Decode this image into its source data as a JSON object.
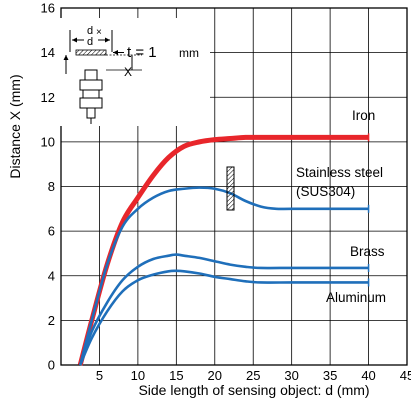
{
  "chart_data": {
    "type": "line",
    "xlabel": "Side length of sensing object: d (mm)",
    "ylabel": "Distance X (mm)",
    "xlim": [
      0,
      45
    ],
    "ylim": [
      0,
      16
    ],
    "x_ticks": [
      "5",
      "10",
      "15",
      "20",
      "25",
      "30",
      "35",
      "40",
      "45"
    ],
    "y_ticks": [
      "0",
      "2",
      "4",
      "6",
      "8",
      "10",
      "12",
      "14",
      "16"
    ],
    "grid": true,
    "inset": {
      "thickness_label": "t = 1",
      "thickness_unit": "mm",
      "d_label": "d",
      "x_label": "X"
    },
    "series": [
      {
        "name": "Iron",
        "color": "#e8262b",
        "points": [
          [
            2.5,
            0
          ],
          [
            4,
            2
          ],
          [
            6,
            4.5
          ],
          [
            8,
            6.4
          ],
          [
            10,
            7.5
          ],
          [
            12,
            8.5
          ],
          [
            14,
            9.3
          ],
          [
            16,
            9.8
          ],
          [
            18,
            10.0
          ],
          [
            20,
            10.1
          ],
          [
            22,
            10.15
          ],
          [
            24,
            10.2
          ],
          [
            26,
            10.2
          ],
          [
            30,
            10.2
          ],
          [
            35,
            10.2
          ],
          [
            40,
            10.2
          ]
        ]
      },
      {
        "name": "Stainless steel (SUS304)",
        "color": "#1f6fba",
        "points": [
          [
            2.5,
            0
          ],
          [
            4,
            2
          ],
          [
            6,
            4.5
          ],
          [
            8,
            6.2
          ],
          [
            10,
            7.0
          ],
          [
            12,
            7.5
          ],
          [
            14,
            7.8
          ],
          [
            16,
            7.9
          ],
          [
            18,
            7.95
          ],
          [
            20,
            7.9
          ],
          [
            22,
            7.7
          ],
          [
            24,
            7.35
          ],
          [
            26,
            7.1
          ],
          [
            28,
            7.0
          ],
          [
            30,
            7.0
          ],
          [
            35,
            7.0
          ],
          [
            40,
            7.0
          ]
        ]
      },
      {
        "name": "Brass",
        "color": "#1f6fba",
        "points": [
          [
            2.5,
            0
          ],
          [
            4,
            1.5
          ],
          [
            6,
            2.8
          ],
          [
            8,
            3.8
          ],
          [
            10,
            4.4
          ],
          [
            12,
            4.75
          ],
          [
            14,
            4.9
          ],
          [
            15,
            4.95
          ],
          [
            16,
            4.9
          ],
          [
            18,
            4.8
          ],
          [
            20,
            4.65
          ],
          [
            22,
            4.5
          ],
          [
            24,
            4.4
          ],
          [
            26,
            4.35
          ],
          [
            30,
            4.35
          ],
          [
            35,
            4.35
          ],
          [
            40,
            4.35
          ]
        ]
      },
      {
        "name": "Aluminum",
        "color": "#1f6fba",
        "points": [
          [
            2.5,
            0
          ],
          [
            4,
            1.2
          ],
          [
            6,
            2.4
          ],
          [
            8,
            3.3
          ],
          [
            10,
            3.8
          ],
          [
            12,
            4.05
          ],
          [
            14,
            4.2
          ],
          [
            15,
            4.22
          ],
          [
            16,
            4.2
          ],
          [
            18,
            4.1
          ],
          [
            20,
            3.95
          ],
          [
            22,
            3.85
          ],
          [
            24,
            3.75
          ],
          [
            26,
            3.7
          ],
          [
            30,
            3.7
          ],
          [
            35,
            3.7
          ],
          [
            40,
            3.7
          ]
        ]
      }
    ]
  }
}
